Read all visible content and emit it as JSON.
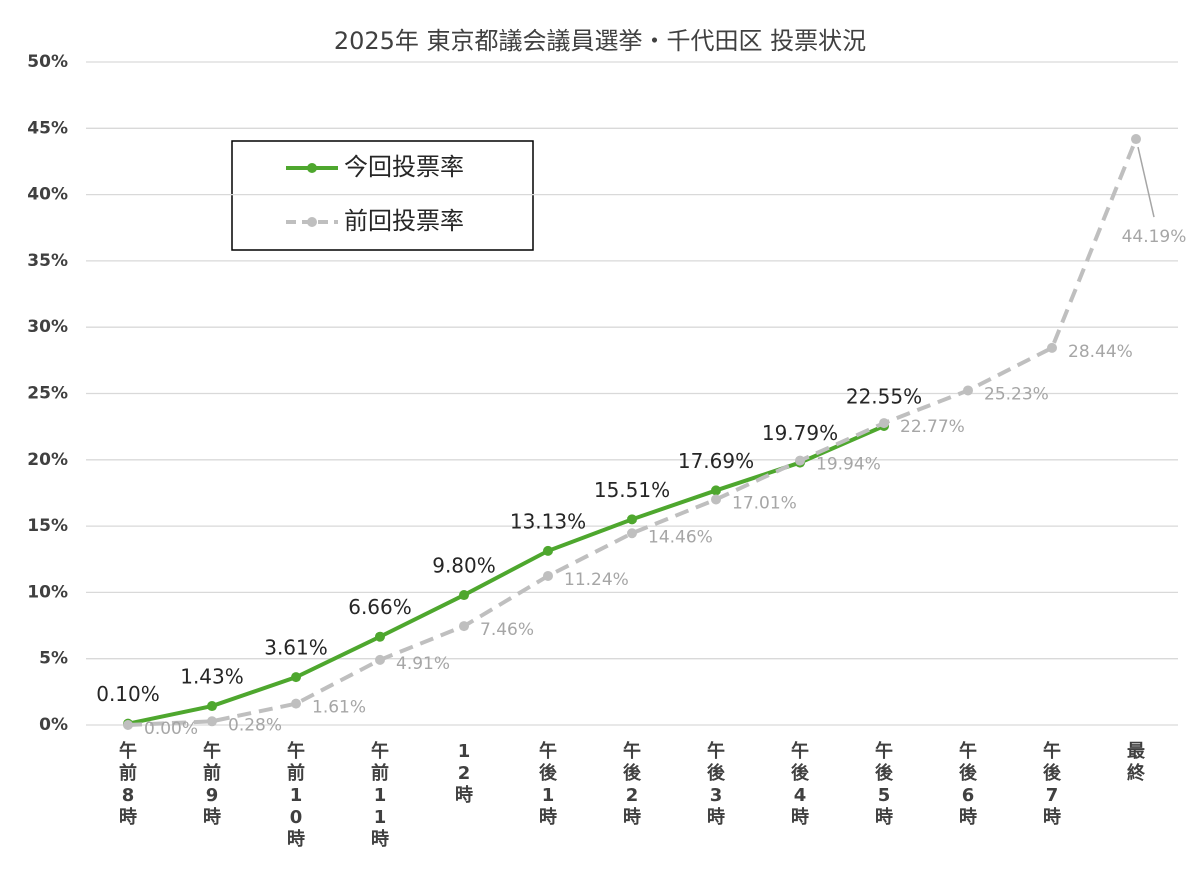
{
  "chart_data": {
    "type": "line",
    "title": "2025年 東京都議会議員選挙・千代田区 投票状況",
    "categories": [
      "午前8時",
      "午前9時",
      "午前10時",
      "午前11時",
      "12時",
      "午後1時",
      "午後2時",
      "午後3時",
      "午後4時",
      "午後5時",
      "午後6時",
      "午後7時",
      "最終"
    ],
    "series": [
      {
        "name": "今回投票率",
        "color": "#4ea72e",
        "dashed": false,
        "values": [
          0.1,
          1.43,
          3.61,
          6.66,
          9.8,
          13.13,
          15.51,
          17.69,
          19.79,
          22.55,
          null,
          null,
          null
        ],
        "value_labels": [
          "0.10%",
          "1.43%",
          "3.61%",
          "6.66%",
          "9.80%",
          "13.13%",
          "15.51%",
          "17.69%",
          "19.79%",
          "22.55%",
          null,
          null,
          null
        ]
      },
      {
        "name": "前回投票率",
        "color": "#bfbfbf",
        "dashed": true,
        "values": [
          0.0,
          0.28,
          1.61,
          4.91,
          7.46,
          11.24,
          14.46,
          17.01,
          19.94,
          22.77,
          25.23,
          28.44,
          44.19
        ],
        "value_labels": [
          "0.00%",
          "0.28%",
          "1.61%",
          "4.91%",
          "7.46%",
          "11.24%",
          "14.46%",
          "17.01%",
          "19.94%",
          "22.77%",
          "25.23%",
          "28.44%",
          "44.19%"
        ]
      }
    ],
    "ylim": [
      0,
      50
    ],
    "yticks": [
      {
        "value": 0,
        "label": "0%"
      },
      {
        "value": 5,
        "label": "5%"
      },
      {
        "value": 10,
        "label": "10%"
      },
      {
        "value": 15,
        "label": "15%"
      },
      {
        "value": 20,
        "label": "20%"
      },
      {
        "value": 25,
        "label": "25%"
      },
      {
        "value": 30,
        "label": "30%"
      },
      {
        "value": 35,
        "label": "35%"
      },
      {
        "value": 40,
        "label": "40%"
      },
      {
        "value": 45,
        "label": "45%"
      },
      {
        "value": 50,
        "label": "50%"
      }
    ],
    "grid": true
  }
}
